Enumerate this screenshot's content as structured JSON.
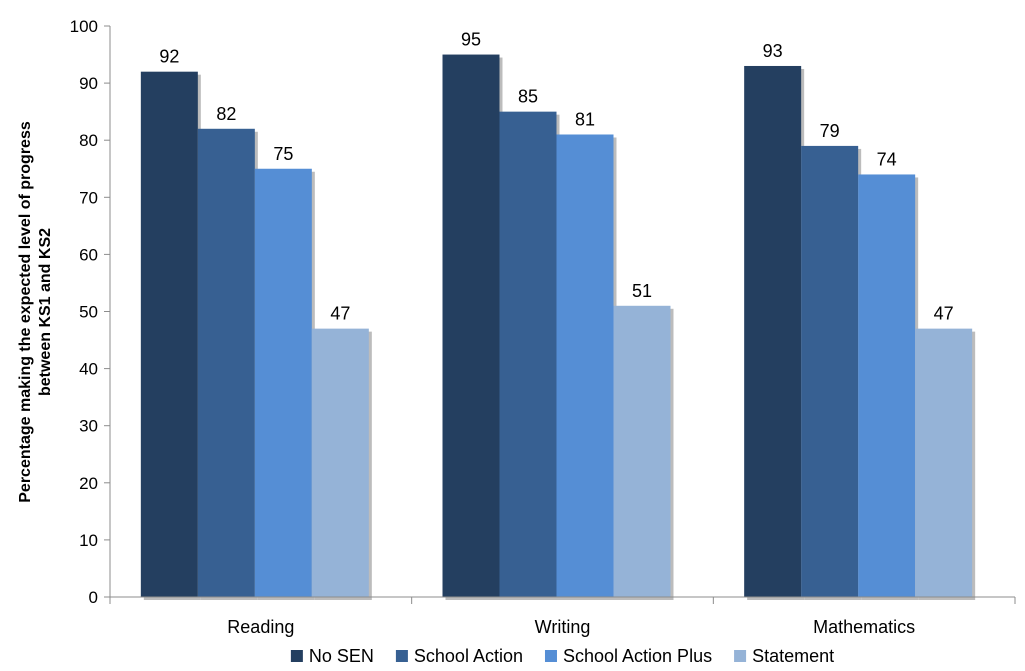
{
  "chart_data": {
    "type": "bar",
    "categories": [
      "Reading",
      "Writing",
      "Mathematics"
    ],
    "series": [
      {
        "name": "No SEN",
        "color": "#243f60",
        "values": [
          92,
          95,
          93
        ]
      },
      {
        "name": "School Action",
        "color": "#376092",
        "values": [
          82,
          85,
          79
        ]
      },
      {
        "name": "School Action Plus",
        "color": "#558ed5",
        "values": [
          75,
          81,
          74
        ]
      },
      {
        "name": "Statement",
        "color": "#95b3d7",
        "values": [
          47,
          51,
          47
        ]
      }
    ],
    "ylabel_lines": [
      "Percentage making the expected level of progress",
      "between KS1 and KS2"
    ],
    "ylim": [
      0,
      100
    ],
    "yticks": [
      0,
      10,
      20,
      30,
      40,
      50,
      60,
      70,
      80,
      90,
      100
    ],
    "grid": false,
    "legend_position": "bottom",
    "data_labels": true
  }
}
